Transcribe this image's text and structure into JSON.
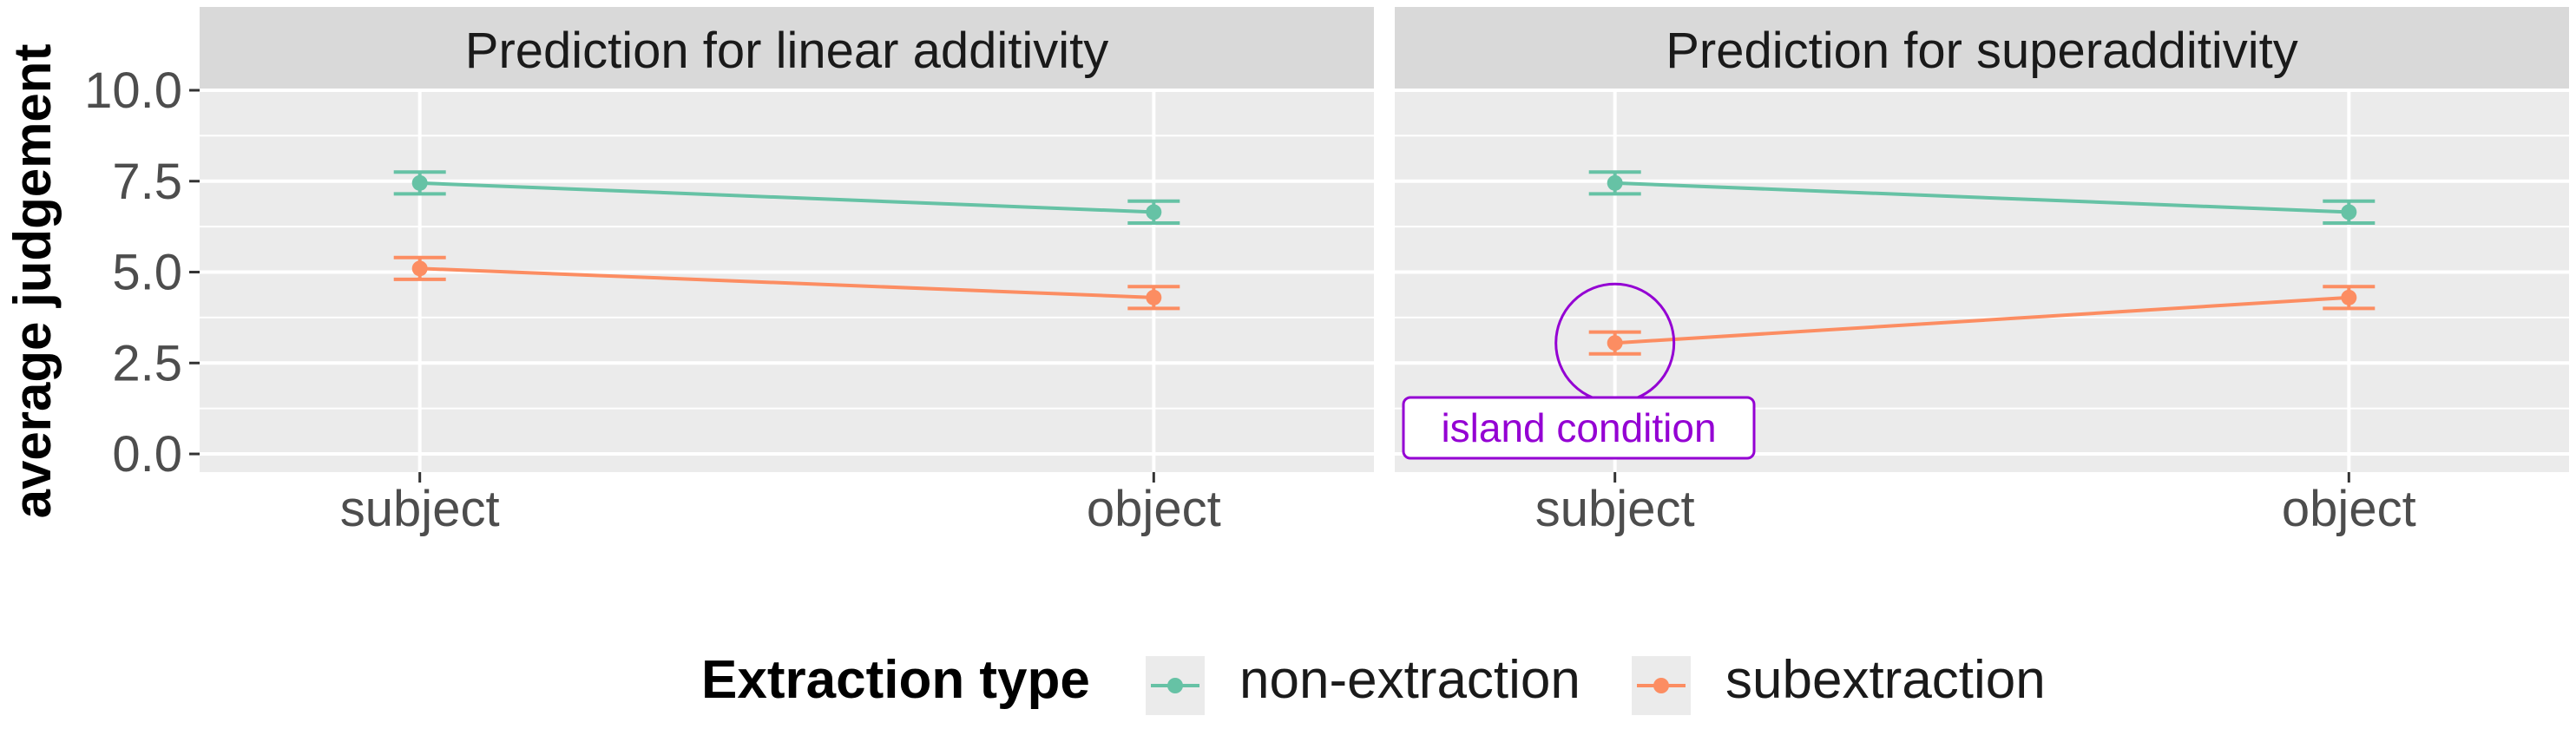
{
  "colors": {
    "non_extraction": "#66c2a5",
    "subextraction": "#fc8d62",
    "annotation": "#9400d3",
    "panel_bg": "#ebebeb",
    "strip_bg": "#d9d9d9",
    "grid": "#ffffff"
  },
  "chart_data": {
    "type": "line",
    "ylabel": "average judgement",
    "ylim": [
      -0.5,
      10.0
    ],
    "yticks": [
      0.0,
      2.5,
      5.0,
      7.5,
      10.0
    ],
    "ytick_labels": [
      "0.0",
      "2.5",
      "5.0",
      "7.5",
      "10.0"
    ],
    "categories": [
      "subject",
      "object"
    ],
    "grid": true,
    "legend": {
      "title": "Extraction type",
      "position": "bottom",
      "entries": [
        "non-extraction",
        "subextraction"
      ]
    },
    "panels": [
      {
        "title": "Prediction for linear additivity",
        "series": [
          {
            "name": "non-extraction",
            "values": [
              7.45,
              6.65
            ],
            "error": [
              0.3,
              0.3
            ]
          },
          {
            "name": "subextraction",
            "values": [
              5.1,
              4.3
            ],
            "error": [
              0.3,
              0.3
            ]
          }
        ]
      },
      {
        "title": "Prediction for superadditivity",
        "series": [
          {
            "name": "non-extraction",
            "values": [
              7.45,
              6.65
            ],
            "error": [
              0.3,
              0.3
            ]
          },
          {
            "name": "subextraction",
            "values": [
              3.05,
              4.3
            ],
            "error": [
              0.3,
              0.3
            ]
          }
        ],
        "annotation": {
          "text": "island condition",
          "category": "subject",
          "value": 3.05
        }
      }
    ]
  }
}
